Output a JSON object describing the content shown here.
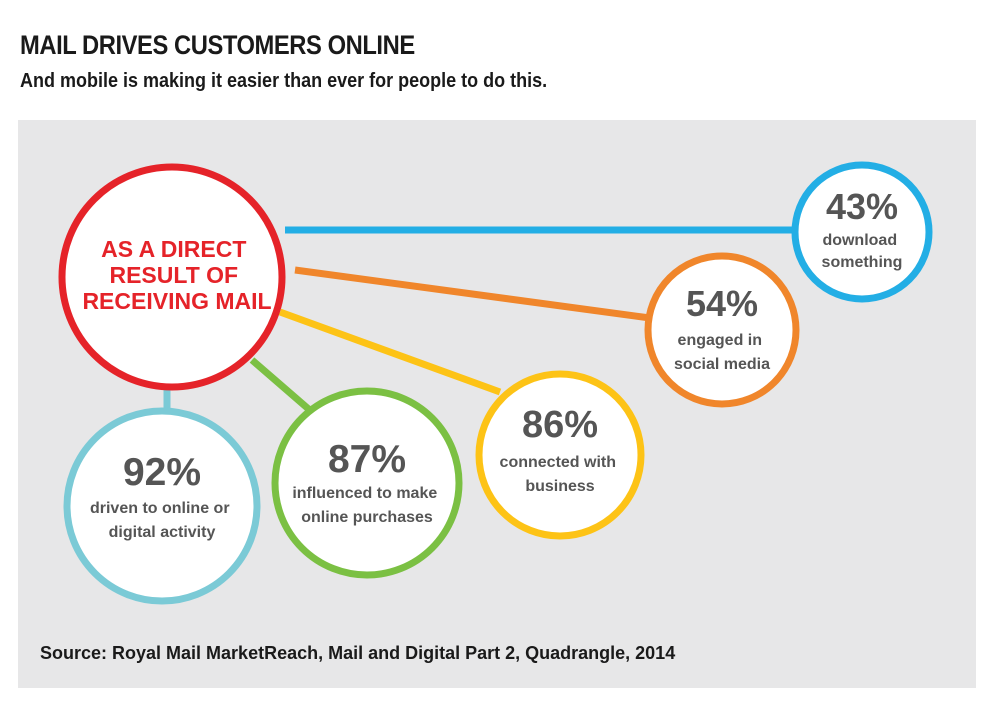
{
  "header": {
    "title": "MAIL DRIVES CUSTOMERS ONLINE",
    "subtitle": "And mobile is making it easier than ever for people to do this."
  },
  "center": {
    "lines": [
      "AS A DIRECT",
      "RESULT OF",
      "RECEIVING MAIL"
    ],
    "color": "#e52329"
  },
  "stats": [
    {
      "value": "43%",
      "lines": [
        "download",
        "something"
      ],
      "color": "#23aee5"
    },
    {
      "value": "54%",
      "lines": [
        "engaged in",
        "social media"
      ],
      "color": "#f0862b"
    },
    {
      "value": "86%",
      "lines": [
        "connected with",
        "business"
      ],
      "color": "#fdc316"
    },
    {
      "value": "87%",
      "lines": [
        "influenced to make",
        "online purchases"
      ],
      "color": "#7bc043"
    },
    {
      "value": "92%",
      "lines": [
        "driven to online or",
        "digital activity"
      ],
      "color": "#7bcad6"
    }
  ],
  "source": "Source: Royal Mail MarketReach, Mail and Digital Part 2, Quadrangle, 2014",
  "colors": {
    "panel": "#e7e7e8",
    "stat_text": "#555555"
  }
}
